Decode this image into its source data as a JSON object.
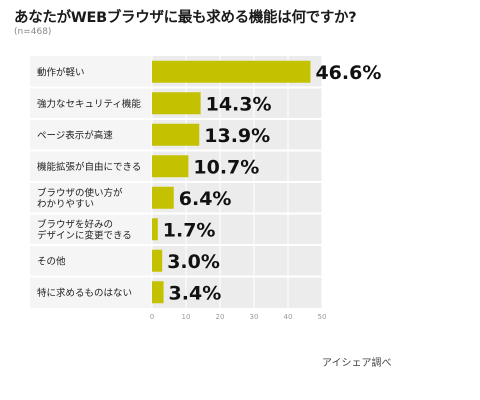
{
  "chart_data": {
    "type": "bar",
    "orientation": "horizontal",
    "title": "あなたがWEBブラウザに最も求める機能は何ですか?",
    "subtitle": "(n=468)",
    "source": "アイシェア調べ",
    "categories": [
      [
        "動作が軽い"
      ],
      [
        "強力なセキュリティ機能"
      ],
      [
        "ページ表示が高速"
      ],
      [
        "機能拡張が自由にできる"
      ],
      [
        "ブラウザの使い方が",
        "わかりやすい"
      ],
      [
        "ブラウザを好みの",
        "デザインに変更できる"
      ],
      [
        "その他"
      ],
      [
        "特に求めるものはない"
      ]
    ],
    "values": [
      46.6,
      14.3,
      13.9,
      10.7,
      6.4,
      1.7,
      3.0,
      3.4
    ],
    "value_labels": [
      "46.6%",
      "14.3%",
      "13.9%",
      "10.7%",
      "6.4%",
      "1.7%",
      "3.0%",
      "3.4%"
    ],
    "xlim": [
      0,
      50
    ],
    "xticks": [
      "0",
      "10",
      "20",
      "30",
      "40",
      "50"
    ],
    "grid": true,
    "colors": {
      "bar": "#c4c200",
      "plot_bg": "#ececec",
      "label_bg": "#f5f5f5",
      "grid": "#ffffff"
    }
  }
}
